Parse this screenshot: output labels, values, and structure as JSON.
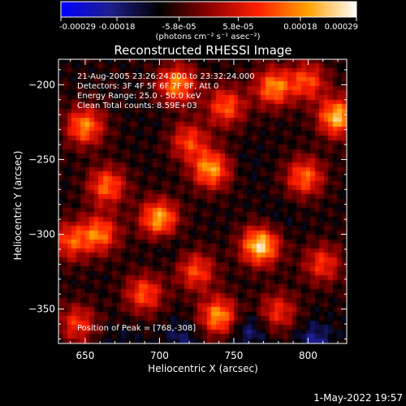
{
  "chart_data": {
    "type": "heatmap",
    "title": "Reconstructed RHESSI Image",
    "xlabel": "Heliocentric X (arcsec)",
    "ylabel": "Heliocentric Y (arcsec)",
    "xlim": [
      632,
      826
    ],
    "ylim": [
      -373,
      -183
    ],
    "xticks": [
      650,
      700,
      750,
      800
    ],
    "yticks": [
      -200,
      -250,
      -300,
      -350
    ],
    "colorbar": {
      "label": "(photons cm⁻² s⁻¹ asec⁻²)",
      "range": [
        -0.00029,
        0.00029
      ],
      "ticks": [
        "-0.00029",
        "-0.00018",
        "-5.8e-05",
        "5.8e-05",
        "0.00018",
        "0.00029"
      ],
      "colormap": [
        "#0000ff",
        "#1e1e8c",
        "#000000",
        "#8c0000",
        "#ff1e00",
        "#ffa000",
        "#ffffff"
      ]
    },
    "annotations": {
      "time": "21-Aug-2005 23:26:24.000 to 23:32:24.000",
      "detectors": "Detectors: 3F 4F 5F 6F 7F 8F, Att 0",
      "energy": "Energy Range: 25.0 - 50.0 keV",
      "clean": "Clean     Total counts: 8.59E+03",
      "peak": "Position of Peak = [768,-308]"
    },
    "peak": [
      768,
      -308
    ],
    "sources": [
      {
        "x": 768,
        "y": -308,
        "value": 0.00029
      },
      {
        "x": 820,
        "y": -222,
        "value": 0.00026
      },
      {
        "x": 700,
        "y": -290,
        "value": 0.00024
      },
      {
        "x": 735,
        "y": -257,
        "value": 0.00022
      },
      {
        "x": 740,
        "y": -355,
        "value": 0.00022
      },
      {
        "x": 712,
        "y": -200,
        "value": 0.00021
      },
      {
        "x": 777,
        "y": -202,
        "value": 0.0002
      },
      {
        "x": 650,
        "y": -228,
        "value": 0.0002
      },
      {
        "x": 660,
        "y": -300,
        "value": 0.00018
      },
      {
        "x": 798,
        "y": -262,
        "value": 0.00017
      },
      {
        "x": 665,
        "y": -268,
        "value": 0.00017
      },
      {
        "x": 745,
        "y": -215,
        "value": 0.00016
      },
      {
        "x": 690,
        "y": -340,
        "value": 0.00015
      },
      {
        "x": 640,
        "y": -305,
        "value": 0.00014
      },
      {
        "x": 725,
        "y": -325,
        "value": 0.00014
      },
      {
        "x": 800,
        "y": -198,
        "value": 0.00014
      },
      {
        "x": 645,
        "y": -360,
        "value": 0.00012
      },
      {
        "x": 810,
        "y": -320,
        "value": 0.00012
      },
      {
        "x": 720,
        "y": -238,
        "value": 0.00013
      },
      {
        "x": 780,
        "y": -352,
        "value": 0.00011
      },
      {
        "x": 805,
        "y": -372,
        "value": -0.0002
      },
      {
        "x": 760,
        "y": -365,
        "value": -0.00018
      },
      {
        "x": 715,
        "y": -370,
        "value": -0.00016
      },
      {
        "x": 705,
        "y": -305,
        "value": -0.00012
      },
      {
        "x": 780,
        "y": -290,
        "value": -0.00011
      },
      {
        "x": 675,
        "y": -375,
        "value": -0.00013
      },
      {
        "x": 760,
        "y": -252,
        "value": -0.0001
      },
      {
        "x": 700,
        "y": -225,
        "value": -9e-05
      }
    ]
  },
  "footer": {
    "date": "1-May-2022 19:57"
  }
}
